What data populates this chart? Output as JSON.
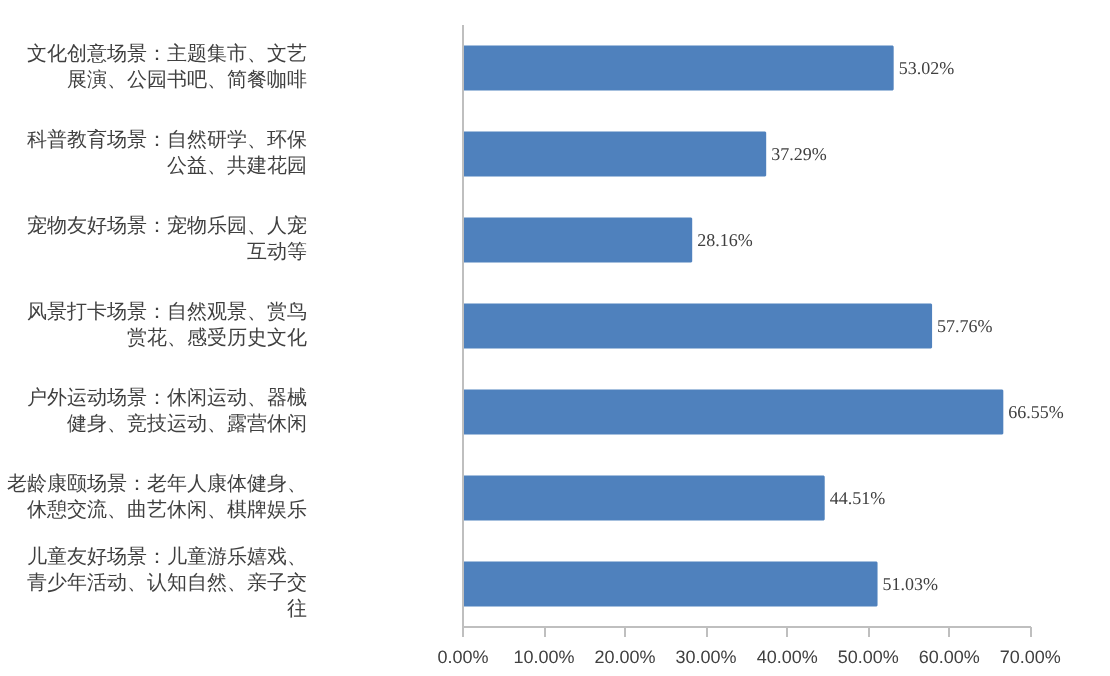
{
  "chart_data": {
    "type": "bar",
    "orientation": "horizontal",
    "color": "#4f81bd",
    "categories": [
      "文化创意场景：主题集市、文艺展演、公园书吧、简餐咖啡",
      "科普教育场景：自然研学、环保公益、共建花园",
      "宠物友好场景：宠物乐园、人宠互动等",
      "风景打卡场景：自然观景、赏鸟赏花、感受历史文化",
      "户外运动场景：休闲运动、器械健身、竞技运动、露营休闲",
      "老龄康颐场景：老年人康体健身、休憩交流、曲艺休闲、棋牌娱乐",
      "儿童友好场景：儿童游乐嬉戏、青少年活动、认知自然、亲子交往"
    ],
    "values": [
      53.02,
      37.29,
      28.16,
      57.76,
      66.55,
      44.51,
      51.03
    ],
    "value_labels": [
      "53.02%",
      "37.29%",
      "28.16%",
      "57.76%",
      "66.55%",
      "44.51%",
      "51.03%"
    ],
    "xlim": [
      0,
      70
    ],
    "xticks": [
      {
        "value": 0,
        "label": "0.00%"
      },
      {
        "value": 10,
        "label": "10.00%"
      },
      {
        "value": 20,
        "label": "20.00%"
      },
      {
        "value": 30,
        "label": "30.00%"
      },
      {
        "value": 40,
        "label": "40.00%"
      },
      {
        "value": 50,
        "label": "50.00%"
      },
      {
        "value": 60,
        "label": "60.00%"
      },
      {
        "value": 70,
        "label": "70.00%"
      }
    ],
    "grid": false,
    "legend": false
  }
}
